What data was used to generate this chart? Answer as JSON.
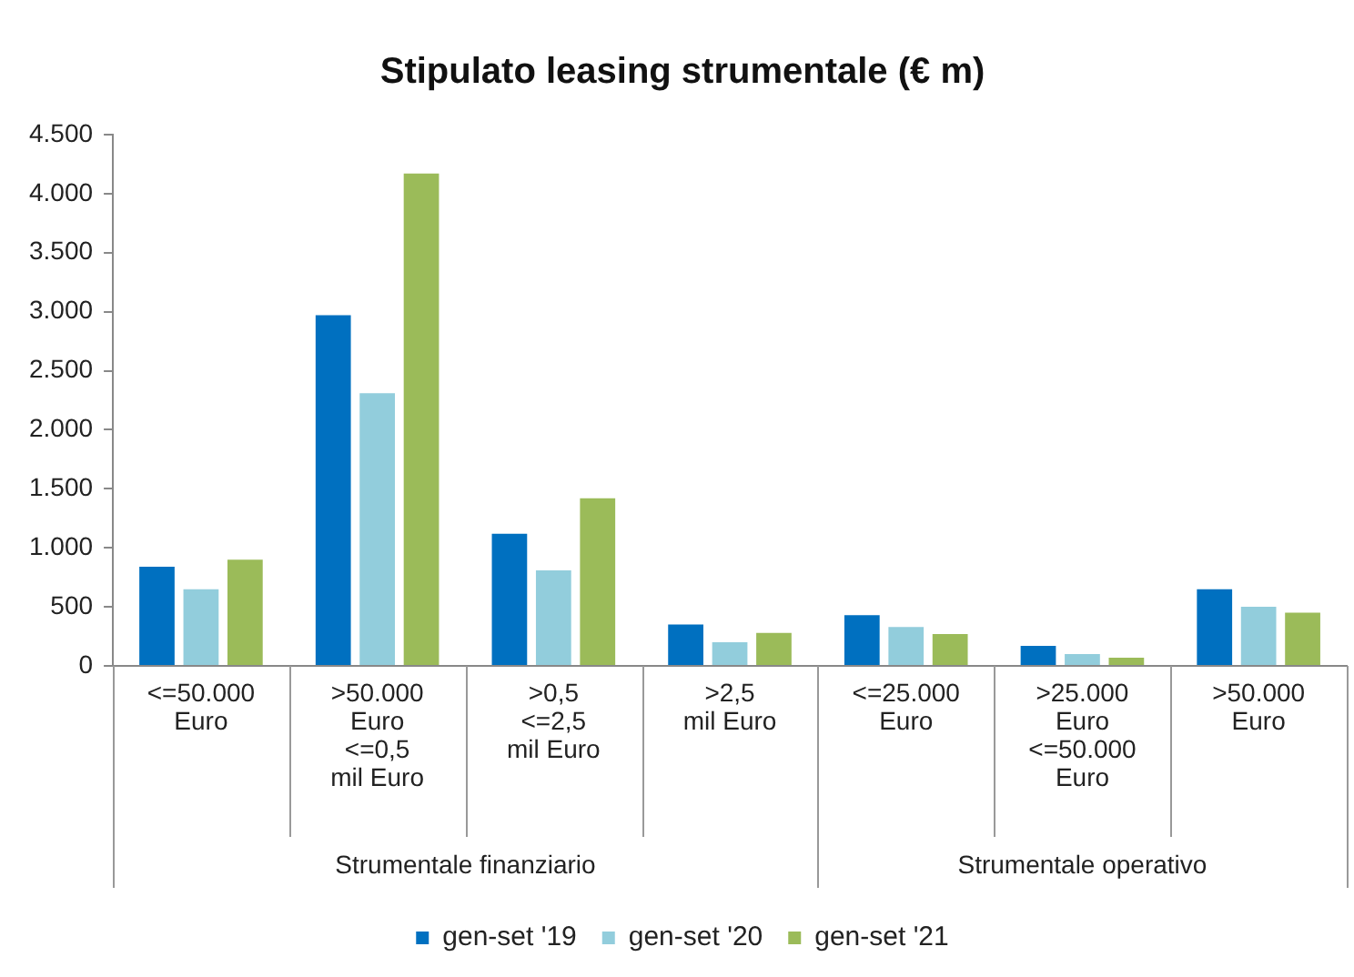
{
  "chart_data": {
    "type": "bar",
    "title": "Stipulato leasing strumentale (€ m)",
    "categories": [
      "<=50.000\nEuro",
      ">50.000\nEuro\n<=0,5\nmil Euro",
      ">0,5\n<=2,5\nmil Euro",
      ">2,5\nmil Euro",
      "<=25.000\nEuro",
      ">25.000\nEuro\n<=50.000\nEuro",
      ">50.000\nEuro"
    ],
    "series": [
      {
        "name": "gen-set '19",
        "color": "#0070c0",
        "values": [
          840,
          2970,
          1120,
          350,
          430,
          170,
          650
        ]
      },
      {
        "name": "gen-set '20",
        "color": "#92cddc",
        "values": [
          650,
          2310,
          810,
          200,
          330,
          100,
          500
        ]
      },
      {
        "name": "gen-set '21",
        "color": "#9bbb59",
        "values": [
          900,
          4170,
          1420,
          280,
          270,
          70,
          450
        ]
      }
    ],
    "annotations": [
      "Strumentale finanziario",
      "Strumentale operativo"
    ],
    "ylim": [
      0,
      4500
    ],
    "yticks": [
      {
        "value": 0,
        "label": "0"
      },
      {
        "value": 500,
        "label": "500"
      },
      {
        "value": 1000,
        "label": "1.000"
      },
      {
        "value": 1500,
        "label": "1.500"
      },
      {
        "value": 2000,
        "label": "2.000"
      },
      {
        "value": 2500,
        "label": "2.500"
      },
      {
        "value": 3000,
        "label": "3.000"
      },
      {
        "value": 3500,
        "label": "3.500"
      },
      {
        "value": 4000,
        "label": "4.000"
      },
      {
        "value": 4500,
        "label": "4.500"
      }
    ],
    "grid": false,
    "legend": "bottom"
  }
}
